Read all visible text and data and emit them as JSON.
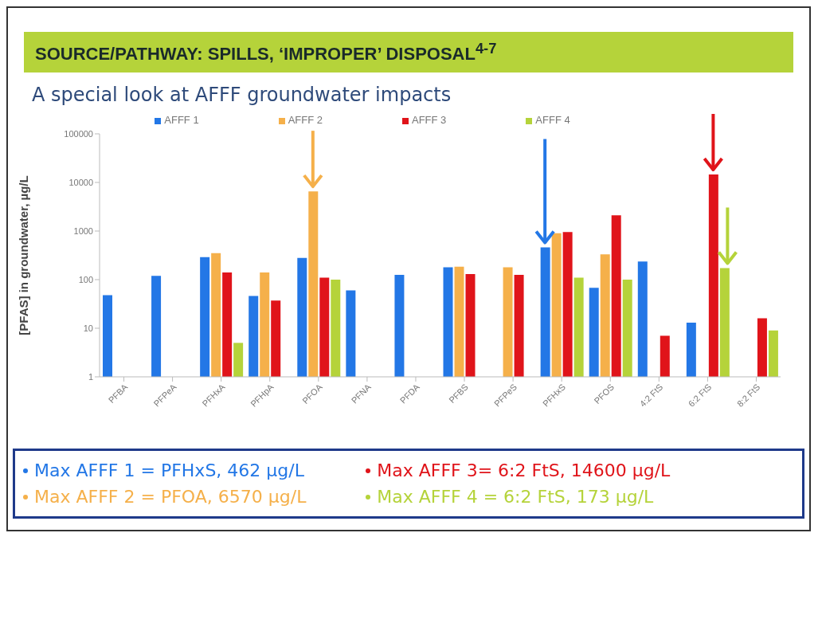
{
  "chart_data": {
    "type": "bar",
    "title": "SOURCE/PATHWAY: SPILLS, ‘IMPROPER’ DISPOSAL$^{4-7}$",
    "subtitle": "A special look at AFFF groundwater impacts",
    "ylabel": "[PFAS] in groundwater, µg/L",
    "categories": [
      "PFBA",
      "PFPeA",
      "PFHxA",
      "PFHpA",
      "PFOA",
      "PFNA",
      "PFDA",
      "PFBS",
      "PFPeS",
      "PFHxS",
      "PFOS",
      "4:2 FtS",
      "6:2 FtS",
      "8:2 FtS"
    ],
    "series": [
      {
        "name": "AFFF 1",
        "color": "#2377e6",
        "values": [
          48,
          120,
          290,
          46,
          280,
          60,
          125,
          180,
          null,
          462,
          68,
          235,
          13,
          null
        ]
      },
      {
        "name": "AFFF 2",
        "color": "#f5b04a",
        "values": [
          null,
          null,
          350,
          140,
          6570,
          null,
          null,
          185,
          180,
          900,
          330,
          null,
          null,
          null
        ]
      },
      {
        "name": "AFFF 3",
        "color": "#e0141a",
        "values": [
          null,
          null,
          140,
          37,
          110,
          null,
          null,
          130,
          125,
          950,
          2100,
          7,
          14600,
          16
        ]
      },
      {
        "name": "AFFF 4",
        "color": "#b5d33a",
        "values": [
          null,
          null,
          5,
          null,
          100,
          null,
          null,
          null,
          null,
          110,
          100,
          null,
          173,
          9
        ]
      }
    ],
    "log": true,
    "ylim": [
      1,
      100000
    ],
    "yticks": [
      1,
      10,
      100,
      1000,
      10000,
      100000
    ],
    "grid": false,
    "legend": "top",
    "annotations": [
      "Max AFFF 1 = PFHxS, 462 µg/L",
      "Max AFFF 2 = PFOA, 6570 µg/L",
      "Max AFFF 3= 6:2 FtS, 14600 µg/L",
      "Max AFFF 4 = 6:2 FtS, 173 µg/L"
    ]
  }
}
